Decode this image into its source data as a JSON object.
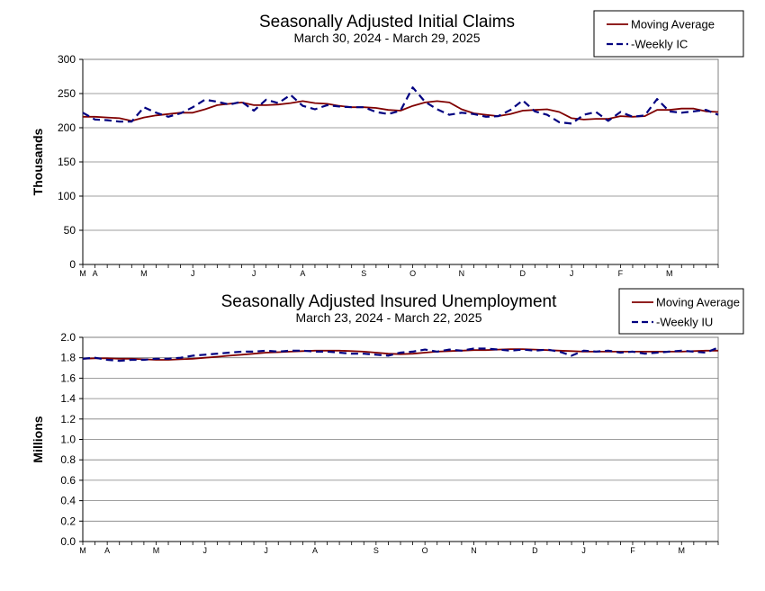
{
  "chart_data": [
    {
      "type": "line",
      "title": "Seasonally Adjusted Initial Claims",
      "subtitle": "March 30, 2024 - March 29, 2025",
      "ylabel": "Thousands",
      "xlabel": "",
      "ylim": [
        0,
        300
      ],
      "yticks": [
        "0",
        "50",
        "100",
        "150",
        "200",
        "250",
        "300"
      ],
      "ytick_values": [
        0,
        50,
        100,
        150,
        200,
        250,
        300
      ],
      "grid": true,
      "legend_position": "top-right",
      "month_labels": [
        {
          "label": "M",
          "week": 0
        },
        {
          "label": "A",
          "week": 1
        },
        {
          "label": "M",
          "week": 5
        },
        {
          "label": "J",
          "week": 9
        },
        {
          "label": "J",
          "week": 14
        },
        {
          "label": "A",
          "week": 18
        },
        {
          "label": "S",
          "week": 23
        },
        {
          "label": "O",
          "week": 27
        },
        {
          "label": "N",
          "week": 31
        },
        {
          "label": "D",
          "week": 36
        },
        {
          "label": "J",
          "week": 40
        },
        {
          "label": "F",
          "week": 44
        },
        {
          "label": "M",
          "week": 48
        }
      ],
      "series": [
        {
          "name": "Moving Average",
          "color": "#800000",
          "style": "solid",
          "values": [
            216,
            216,
            215,
            214,
            210,
            215,
            218,
            220,
            222,
            222,
            227,
            233,
            235,
            237,
            233,
            233,
            234,
            236,
            239,
            236,
            235,
            232,
            230,
            230,
            229,
            226,
            225,
            232,
            237,
            239,
            237,
            227,
            221,
            219,
            217,
            220,
            225,
            226,
            227,
            223,
            214,
            212,
            213,
            213,
            217,
            216,
            217,
            226,
            226,
            228,
            228,
            224,
            223
          ]
        },
        {
          "name": "-Weekly IC",
          "color": "#000080",
          "style": "dashed",
          "values": [
            222,
            212,
            211,
            209,
            209,
            230,
            222,
            216,
            221,
            230,
            241,
            238,
            234,
            238,
            225,
            241,
            236,
            248,
            232,
            227,
            233,
            231,
            230,
            230,
            223,
            220,
            225,
            259,
            238,
            227,
            219,
            222,
            220,
            216,
            217,
            226,
            240,
            224,
            219,
            208,
            206,
            219,
            223,
            210,
            223,
            216,
            218,
            242,
            224,
            222,
            224,
            226,
            219
          ]
        }
      ]
    },
    {
      "type": "line",
      "title": "Seasonally Adjusted Insured Unemployment",
      "subtitle": "March 23, 2024 - March 22, 2025",
      "ylabel": "Millions",
      "xlabel": "",
      "ylim": [
        0,
        2.0
      ],
      "yticks": [
        "0.0",
        "0.2",
        "0.4",
        "0.6",
        "0.8",
        "1.0",
        "1.2",
        "1.4",
        "1.6",
        "1.8",
        "2.0"
      ],
      "ytick_values": [
        0,
        0.2,
        0.4,
        0.6,
        0.8,
        1.0,
        1.2,
        1.4,
        1.6,
        1.8,
        2.0
      ],
      "grid": true,
      "legend_position": "top-right",
      "month_labels": [
        {
          "label": "M",
          "week": 0
        },
        {
          "label": "A",
          "week": 2
        },
        {
          "label": "M",
          "week": 6
        },
        {
          "label": "J",
          "week": 10
        },
        {
          "label": "J",
          "week": 15
        },
        {
          "label": "A",
          "week": 19
        },
        {
          "label": "S",
          "week": 24
        },
        {
          "label": "O",
          "week": 28
        },
        {
          "label": "N",
          "week": 32
        },
        {
          "label": "D",
          "week": 37
        },
        {
          "label": "J",
          "week": 41
        },
        {
          "label": "F",
          "week": 45
        },
        {
          "label": "M",
          "week": 49
        }
      ],
      "series": [
        {
          "name": "Moving Average",
          "color": "#800000",
          "style": "solid",
          "values": [
            1.79,
            1.795,
            1.795,
            1.79,
            1.79,
            1.785,
            1.78,
            1.78,
            1.785,
            1.79,
            1.8,
            1.81,
            1.82,
            1.83,
            1.84,
            1.85,
            1.855,
            1.86,
            1.865,
            1.87,
            1.87,
            1.87,
            1.865,
            1.86,
            1.85,
            1.84,
            1.835,
            1.84,
            1.85,
            1.86,
            1.865,
            1.87,
            1.875,
            1.875,
            1.88,
            1.885,
            1.885,
            1.88,
            1.875,
            1.87,
            1.865,
            1.86,
            1.86,
            1.86,
            1.86,
            1.86,
            1.86,
            1.86,
            1.86,
            1.86,
            1.865,
            1.87,
            1.87
          ]
        },
        {
          "name": "-Weekly IU",
          "color": "#000080",
          "style": "dashed",
          "values": [
            1.79,
            1.8,
            1.78,
            1.77,
            1.78,
            1.78,
            1.79,
            1.79,
            1.8,
            1.82,
            1.83,
            1.84,
            1.85,
            1.86,
            1.86,
            1.87,
            1.86,
            1.87,
            1.87,
            1.86,
            1.86,
            1.85,
            1.84,
            1.84,
            1.83,
            1.82,
            1.85,
            1.86,
            1.88,
            1.86,
            1.88,
            1.87,
            1.89,
            1.89,
            1.88,
            1.87,
            1.88,
            1.87,
            1.88,
            1.86,
            1.82,
            1.87,
            1.86,
            1.87,
            1.85,
            1.86,
            1.84,
            1.85,
            1.86,
            1.87,
            1.86,
            1.85,
            1.9
          ]
        }
      ]
    }
  ]
}
